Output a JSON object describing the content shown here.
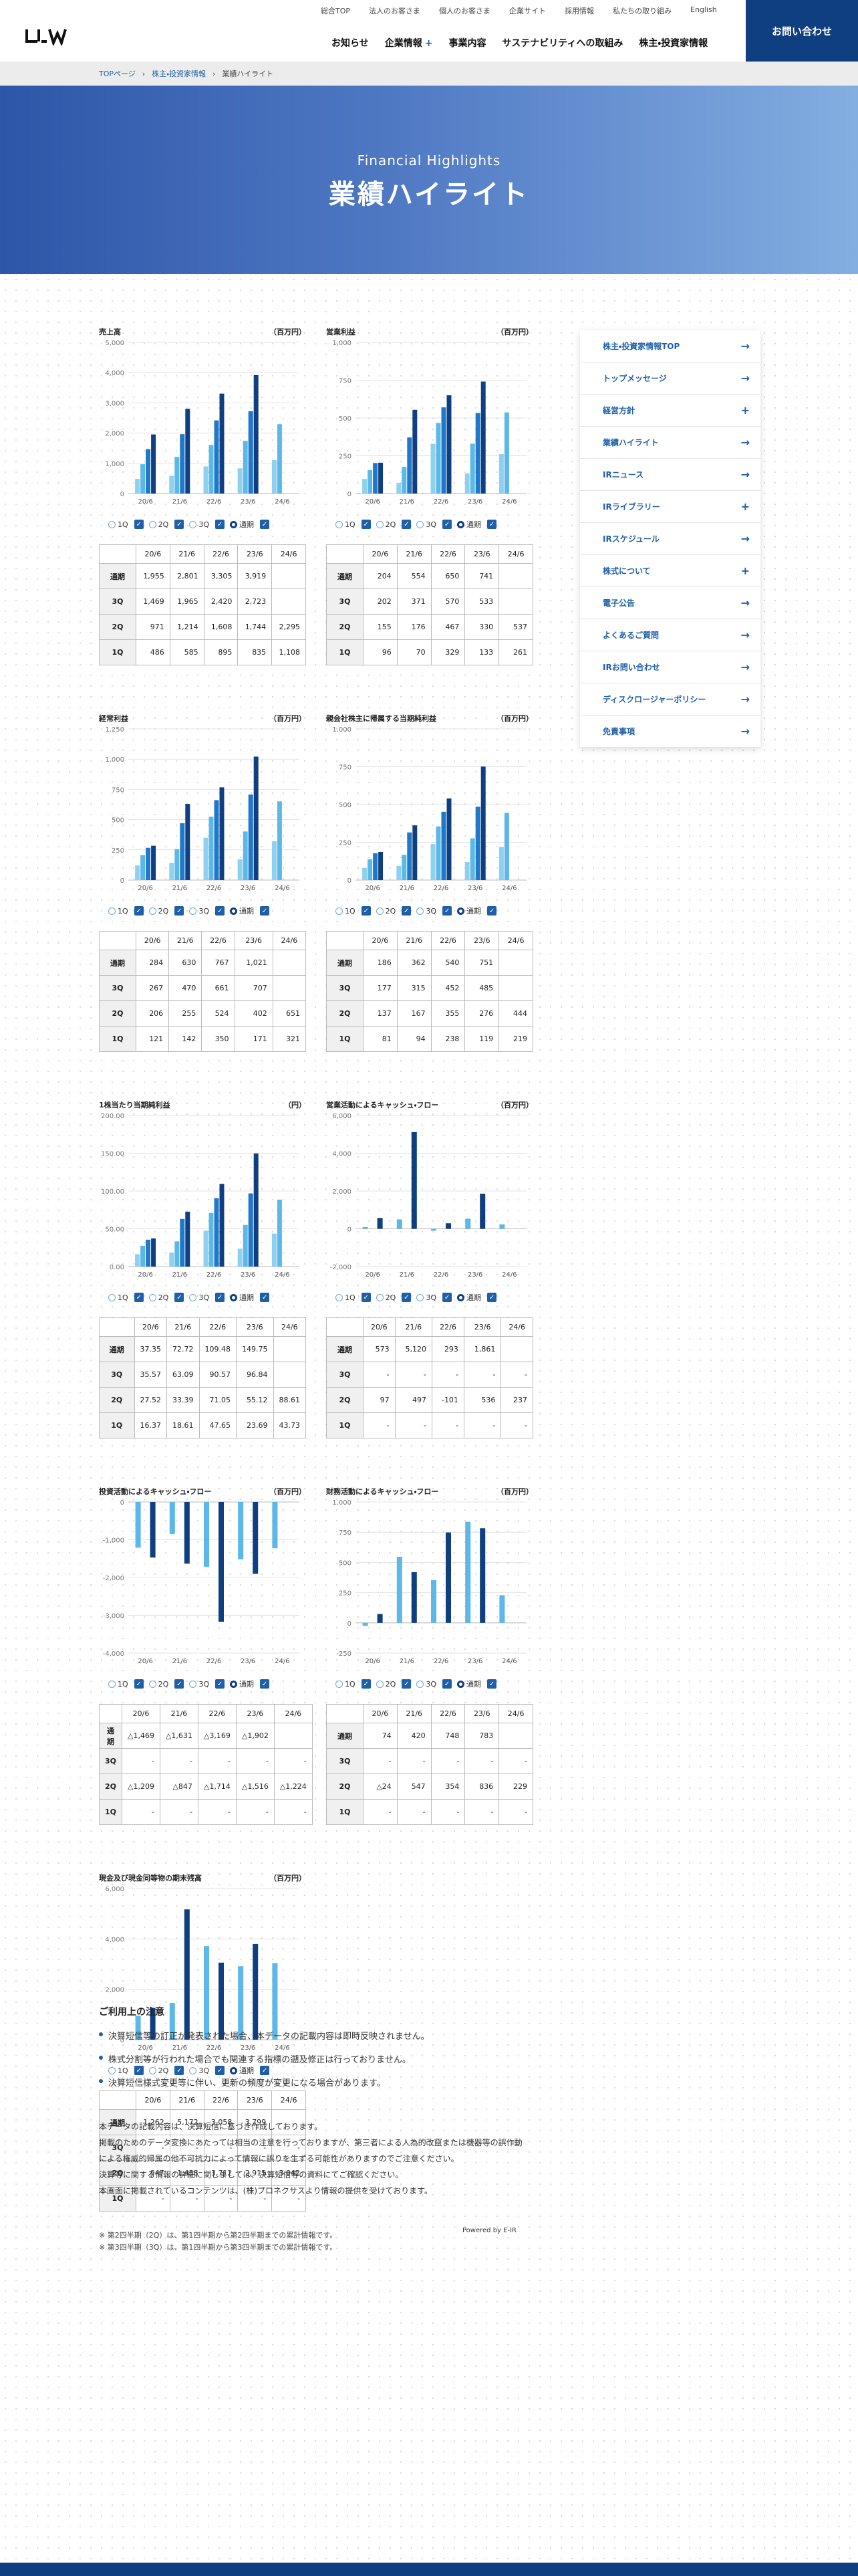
{
  "header": {
    "logo": "J_W",
    "util": [
      "総合TOP",
      "法人のお客さま",
      "個人のお客さま",
      "企業サイト",
      "採用情報",
      "私たちの取り組み",
      "English"
    ],
    "nav": [
      "お知らせ",
      "企業情報",
      "事業内容",
      "サステナビリティへの取組み",
      "株主・投資家情報"
    ],
    "contact": "お問い合わせ"
  },
  "breadcrumb": [
    "TOPページ",
    "株主・投資家情報",
    "業績ハイライト"
  ],
  "hero": {
    "en": "Financial Highlights",
    "jp": "業績ハイライト"
  },
  "legend": [
    "1Q",
    "2Q",
    "3Q",
    "通期"
  ],
  "colors": {
    "q1": "#8fd0ee",
    "q2": "#5bb8e8",
    "q3": "#1f78c8",
    "fy": "#0f3f80"
  },
  "periods": [
    "20/6",
    "21/6",
    "22/6",
    "23/6",
    "24/6"
  ],
  "rowlabels": [
    "通期",
    "3Q",
    "2Q",
    "1Q"
  ],
  "sidebar": [
    "株主・投資家情報TOP",
    "トップメッセージ",
    "経営方針",
    "業績ハイライト",
    "IRニュース",
    "IRライブラリー",
    "IRスケジュール",
    "株式について",
    "電子公告",
    "よくあるご質問",
    "IRお問い合わせ",
    "ディスクロージャーポリシー",
    "免責事項"
  ],
  "sidebar_icons": [
    "arrow",
    "arrow",
    "plus",
    "arrow",
    "arrow",
    "plus",
    "arrow",
    "plus",
    "arrow",
    "arrow",
    "arrow",
    "arrow",
    "arrow"
  ],
  "chart_data": [
    {
      "type": "bar",
      "title": "売上高",
      "unit": "（百万円）",
      "categories": [
        "20/6",
        "21/6",
        "22/6",
        "23/6",
        "24/6"
      ],
      "yticks": [
        "5,000",
        "4,000",
        "3,000",
        "2,000",
        "1,000",
        "0"
      ],
      "ylim": [
        0,
        5000
      ],
      "mode": "group",
      "series": [
        {
          "name": "1Q",
          "values": [
            486,
            585,
            895,
            835,
            1108
          ]
        },
        {
          "name": "2Q",
          "values": [
            971,
            1214,
            1608,
            1744,
            2295
          ]
        },
        {
          "name": "3Q",
          "values": [
            1469,
            1965,
            2420,
            2723,
            null
          ]
        },
        {
          "name": "通期",
          "values": [
            1955,
            2801,
            3305,
            3919,
            null
          ]
        }
      ],
      "table": [
        [
          "1,955",
          "2,801",
          "3,305",
          "3,919",
          ""
        ],
        [
          "1,469",
          "1,965",
          "2,420",
          "2,723",
          ""
        ],
        [
          "971",
          "1,214",
          "1,608",
          "1,744",
          "2,295"
        ],
        [
          "486",
          "585",
          "895",
          "835",
          "1,108"
        ]
      ]
    },
    {
      "type": "bar",
      "title": "営業利益",
      "unit": "（百万円）",
      "categories": [
        "20/6",
        "21/6",
        "22/6",
        "23/6",
        "24/6"
      ],
      "yticks": [
        "1,000",
        "750",
        "500",
        "250",
        "0"
      ],
      "ylim": [
        0,
        1000
      ],
      "mode": "group",
      "series": [
        {
          "name": "1Q",
          "values": [
            96,
            70,
            329,
            133,
            261
          ]
        },
        {
          "name": "2Q",
          "values": [
            155,
            176,
            467,
            330,
            537
          ]
        },
        {
          "name": "3Q",
          "values": [
            202,
            371,
            570,
            533,
            null
          ]
        },
        {
          "name": "通期",
          "values": [
            204,
            554,
            650,
            741,
            null
          ]
        }
      ],
      "table": [
        [
          "204",
          "554",
          "650",
          "741",
          ""
        ],
        [
          "202",
          "371",
          "570",
          "533",
          ""
        ],
        [
          "155",
          "176",
          "467",
          "330",
          "537"
        ],
        [
          "96",
          "70",
          "329",
          "133",
          "261"
        ]
      ]
    },
    {
      "type": "bar",
      "title": "経常利益",
      "unit": "（百万円）",
      "categories": [
        "20/6",
        "21/6",
        "22/6",
        "23/6",
        "24/6"
      ],
      "yticks": [
        "1,250",
        "1,000",
        "750",
        "500",
        "250",
        "0"
      ],
      "ylim": [
        0,
        1250
      ],
      "mode": "group",
      "series": [
        {
          "name": "1Q",
          "values": [
            121,
            142,
            350,
            171,
            321
          ]
        },
        {
          "name": "2Q",
          "values": [
            206,
            255,
            524,
            402,
            651
          ]
        },
        {
          "name": "3Q",
          "values": [
            267,
            470,
            661,
            707,
            null
          ]
        },
        {
          "name": "通期",
          "values": [
            284,
            630,
            767,
            1021,
            null
          ]
        }
      ],
      "table": [
        [
          "284",
          "630",
          "767",
          "1,021",
          ""
        ],
        [
          "267",
          "470",
          "661",
          "707",
          ""
        ],
        [
          "206",
          "255",
          "524",
          "402",
          "651"
        ],
        [
          "121",
          "142",
          "350",
          "171",
          "321"
        ]
      ]
    },
    {
      "type": "bar",
      "title": "親会社株主に帰属する当期純利益",
      "unit": "（百万円）",
      "categories": [
        "20/6",
        "21/6",
        "22/6",
        "23/6",
        "24/6"
      ],
      "yticks": [
        "1,000",
        "750",
        "500",
        "250",
        "0"
      ],
      "ylim": [
        0,
        1000
      ],
      "mode": "group",
      "series": [
        {
          "name": "1Q",
          "values": [
            81,
            94,
            238,
            119,
            219
          ]
        },
        {
          "name": "2Q",
          "values": [
            137,
            167,
            355,
            276,
            444
          ]
        },
        {
          "name": "3Q",
          "values": [
            177,
            315,
            452,
            485,
            null
          ]
        },
        {
          "name": "通期",
          "values": [
            186,
            362,
            540,
            751,
            null
          ]
        }
      ],
      "table": [
        [
          "186",
          "362",
          "540",
          "751",
          ""
        ],
        [
          "177",
          "315",
          "452",
          "485",
          ""
        ],
        [
          "137",
          "167",
          "355",
          "276",
          "444"
        ],
        [
          "81",
          "94",
          "238",
          "119",
          "219"
        ]
      ]
    },
    {
      "type": "bar",
      "title": "1株当たり当期純利益",
      "unit": "（円）",
      "categories": [
        "20/6",
        "21/6",
        "22/6",
        "23/6",
        "24/6"
      ],
      "yticks": [
        "200.00",
        "150.00",
        "100.00",
        "50.00",
        "0.00"
      ],
      "ylim": [
        0,
        200
      ],
      "mode": "group",
      "series": [
        {
          "name": "1Q",
          "values": [
            16.37,
            18.61,
            47.65,
            23.69,
            43.73
          ]
        },
        {
          "name": "2Q",
          "values": [
            27.52,
            33.39,
            71.05,
            55.12,
            88.61
          ]
        },
        {
          "name": "3Q",
          "values": [
            35.57,
            63.09,
            90.57,
            96.84,
            null
          ]
        },
        {
          "name": "通期",
          "values": [
            37.35,
            72.72,
            109.48,
            149.75,
            null
          ]
        }
      ],
      "table": [
        [
          "37.35",
          "72.72",
          "109.48",
          "149.75",
          ""
        ],
        [
          "35.57",
          "63.09",
          "90.57",
          "96.84",
          ""
        ],
        [
          "27.52",
          "33.39",
          "71.05",
          "55.12",
          "88.61"
        ],
        [
          "16.37",
          "18.61",
          "47.65",
          "23.69",
          "43.73"
        ]
      ]
    },
    {
      "type": "bar",
      "title": "営業活動によるキャッシュ・フロー",
      "unit": "（百万円）",
      "categories": [
        "20/6",
        "21/6",
        "22/6",
        "23/6",
        "24/6"
      ],
      "yticks": [
        "6,000",
        "4,000",
        "2,000",
        "0",
        "-2,000"
      ],
      "ylim": [
        -2000,
        6000
      ],
      "mode": "pair",
      "series": [
        {
          "name": "2Q",
          "values": [
            97,
            497,
            -101,
            536,
            237
          ]
        },
        {
          "name": "通期",
          "values": [
            573,
            5120,
            293,
            1861,
            null
          ]
        }
      ],
      "table": [
        [
          "573",
          "5,120",
          "293",
          "1,861",
          ""
        ],
        [
          "-",
          "-",
          "-",
          "-",
          "-"
        ],
        [
          "97",
          "497",
          "-101",
          "536",
          "237"
        ],
        [
          "-",
          "-",
          "-",
          "-",
          "-"
        ]
      ]
    },
    {
      "type": "bar",
      "title": "投資活動によるキャッシュ・フロー",
      "unit": "（百万円）",
      "categories": [
        "20/6",
        "21/6",
        "22/6",
        "23/6",
        "24/6"
      ],
      "yticks": [
        "0",
        "-1,000",
        "-2,000",
        "-3,000",
        "-4,000"
      ],
      "ylim": [
        -4000,
        0
      ],
      "mode": "pair",
      "series": [
        {
          "name": "2Q",
          "values": [
            -1209,
            -847,
            -1714,
            -1516,
            -1224
          ]
        },
        {
          "name": "通期",
          "values": [
            -1469,
            -1631,
            -3169,
            -1902,
            null
          ]
        }
      ],
      "table": [
        [
          "△1,469",
          "△1,631",
          "△3,169",
          "△1,902",
          ""
        ],
        [
          "-",
          "-",
          "-",
          "-",
          "-"
        ],
        [
          "△1,209",
          "△847",
          "△1,714",
          "△1,516",
          "△1,224"
        ],
        [
          "-",
          "-",
          "-",
          "-",
          "-"
        ]
      ]
    },
    {
      "type": "bar",
      "title": "財務活動によるキャッシュ・フロー",
      "unit": "（百万円）",
      "categories": [
        "20/6",
        "21/6",
        "22/6",
        "23/6",
        "24/6"
      ],
      "yticks": [
        "1,000",
        "750",
        "500",
        "250",
        "0",
        "-250"
      ],
      "ylim": [
        -250,
        1000
      ],
      "mode": "pair",
      "series": [
        {
          "name": "2Q",
          "values": [
            -24,
            547,
            354,
            836,
            229
          ]
        },
        {
          "name": "通期",
          "values": [
            74,
            420,
            748,
            783,
            null
          ]
        }
      ],
      "table": [
        [
          "74",
          "420",
          "748",
          "783",
          ""
        ],
        [
          "-",
          "-",
          "-",
          "-",
          "-"
        ],
        [
          "△24",
          "547",
          "354",
          "836",
          "229"
        ],
        [
          "-",
          "-",
          "-",
          "-",
          "-"
        ]
      ]
    },
    {
      "type": "bar",
      "title": "現金及び現金同等物の期末残高",
      "unit": "（百万円）",
      "categories": [
        "20/6",
        "21/6",
        "22/6",
        "23/6",
        "24/6"
      ],
      "yticks": [
        "6,000",
        "4,000",
        "2,000",
        "0"
      ],
      "ylim": [
        0,
        6000
      ],
      "mode": "pair",
      "series": [
        {
          "name": "2Q",
          "values": [
            947,
            1458,
            3712,
            2915,
            3042
          ]
        },
        {
          "name": "通期",
          "values": [
            1262,
            5172,
            3058,
            3799,
            null
          ]
        }
      ],
      "table": [
        [
          "1,262",
          "5,172",
          "3,058",
          "3,799",
          ""
        ],
        [
          "-",
          "-",
          "-",
          "-",
          "-"
        ],
        [
          "947",
          "1,458",
          "3,712",
          "2,915",
          "3,042"
        ],
        [
          "-",
          "-",
          "-",
          "-",
          "-"
        ]
      ]
    }
  ],
  "notes": [
    "※ 第2四半期（2Q）は、第1四半期から第2四半期までの累計情報です。",
    "※ 第3四半期（3Q）は、第1四半期から第3四半期までの累計情報です。"
  ],
  "caution": {
    "title": "ご利用上の注意",
    "items": [
      "決算短信等の訂正が発表された場合、本データの記載内容は即時反映されません。",
      "株式分割等が行われた場合でも関連する指標の遡及修正は行っておりません。",
      "決算短信様式変更等に伴い、更新の頻度が変更になる場合があります。"
    ]
  },
  "disclaimer": [
    "本データの記載内容は、決算短信に基づき作成しております。",
    "掲載のためのデータ変換にあたっては相当の注意を行っておりますが、第三者による人為的改竄または機器等の誤作動による権威的帰属の他不可抗力によって情報に誤りを生ずる可能性がありますのでご注意ください。",
    "決算等に関する情報の詳細に関しましては、決算短信等の資料にてご確認ください。",
    "本画面に掲載されているコンテンツは、(株)プロネクサスより情報の提供を受けております。"
  ],
  "powered": "Powered by E-IR"
}
